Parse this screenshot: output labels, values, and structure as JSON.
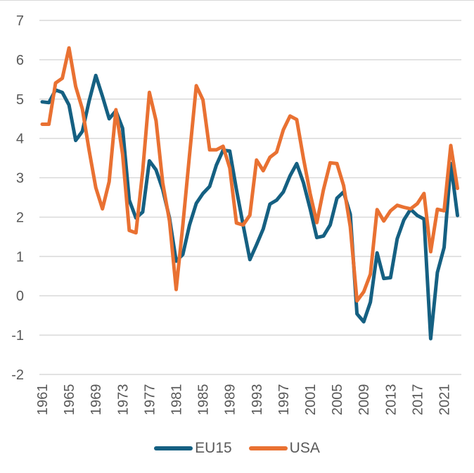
{
  "chart_data": {
    "type": "line",
    "title": "",
    "xlabel": "",
    "ylabel": "",
    "ylim": [
      -2,
      7
    ],
    "yticks": [
      -2,
      -1,
      0,
      1,
      2,
      3,
      4,
      5,
      6,
      7
    ],
    "grid": true,
    "legend_position": "bottom",
    "x": [
      1961,
      1962,
      1963,
      1964,
      1965,
      1966,
      1967,
      1968,
      1969,
      1970,
      1971,
      1972,
      1973,
      1974,
      1975,
      1976,
      1977,
      1978,
      1979,
      1980,
      1981,
      1982,
      1983,
      1984,
      1985,
      1986,
      1987,
      1988,
      1989,
      1990,
      1991,
      1992,
      1993,
      1994,
      1995,
      1996,
      1997,
      1998,
      1999,
      2000,
      2001,
      2002,
      2003,
      2004,
      2005,
      2006,
      2007,
      2008,
      2009,
      2010,
      2011,
      2012,
      2013,
      2014,
      2015,
      2016,
      2017,
      2018,
      2019,
      2020,
      2021,
      2022,
      2023
    ],
    "xtick_labels": [
      "1961",
      "1965",
      "1969",
      "1973",
      "1977",
      "1981",
      "1985",
      "1989",
      "1993",
      "1997",
      "2001",
      "2005",
      "2009",
      "2013",
      "2017",
      "2021"
    ],
    "series": [
      {
        "name": "EU15",
        "color": "#156082",
        "values": [
          4.93,
          4.91,
          5.23,
          5.17,
          4.85,
          3.95,
          4.18,
          4.95,
          5.6,
          5.07,
          4.5,
          4.7,
          4.26,
          2.43,
          1.98,
          2.13,
          3.43,
          3.2,
          2.7,
          1.98,
          0.88,
          1.05,
          1.8,
          2.35,
          2.6,
          2.78,
          3.32,
          3.7,
          3.68,
          2.7,
          1.8,
          0.92,
          1.3,
          1.7,
          2.33,
          2.43,
          2.64,
          3.05,
          3.36,
          2.88,
          2.21,
          1.48,
          1.52,
          1.8,
          2.48,
          2.64,
          2.07,
          -0.46,
          -0.66,
          -0.16,
          1.09,
          0.44,
          0.46,
          1.45,
          1.93,
          2.2,
          2.04,
          1.95,
          -1.09,
          0.59,
          1.23,
          3.36,
          2.04
        ]
      },
      {
        "name": "USA",
        "color": "#E97132",
        "values": [
          4.36,
          4.36,
          5.41,
          5.53,
          6.3,
          5.32,
          4.75,
          3.7,
          2.75,
          2.21,
          2.9,
          4.73,
          3.6,
          1.66,
          1.6,
          3.17,
          5.17,
          4.45,
          2.87,
          1.9,
          0.16,
          1.8,
          3.58,
          5.34,
          4.98,
          3.71,
          3.71,
          3.8,
          3.25,
          1.85,
          1.8,
          2.05,
          3.45,
          3.18,
          3.52,
          3.65,
          4.22,
          4.57,
          4.48,
          3.5,
          2.6,
          1.86,
          2.7,
          3.38,
          3.36,
          2.8,
          1.75,
          -0.13,
          0.1,
          0.55,
          2.19,
          1.9,
          2.16,
          2.3,
          2.25,
          2.21,
          2.34,
          2.6,
          1.12,
          2.2,
          2.16,
          3.82,
          2.73
        ]
      }
    ]
  },
  "legend": {
    "items": [
      {
        "label": "EU15",
        "color": "#156082"
      },
      {
        "label": "USA",
        "color": "#E97132"
      }
    ]
  },
  "colors": {
    "grid": "#d9d9d9",
    "text": "#595959"
  }
}
